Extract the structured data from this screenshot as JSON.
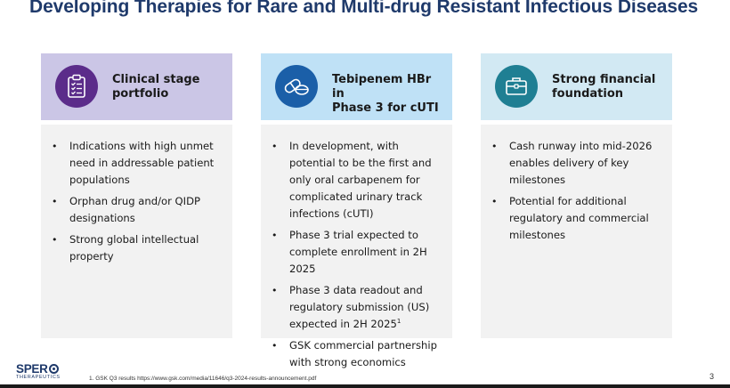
{
  "title": "Developing Therapies for Rare and Multi-drug Resistant Infectious Diseases",
  "columns": [
    {
      "icon": "clipboard-checklist-icon",
      "head_bg": "#cbc6e6",
      "icon_bg": "#5b2c8a",
      "heading_line1": "Clinical stage",
      "heading_line2": "portfolio",
      "bullets": [
        "Indications with high unmet need in addressable patient populations",
        "Orphan drug and/or QIDP designations",
        "Strong global intellectual property"
      ]
    },
    {
      "icon": "pills-icon",
      "head_bg": "#bfe1f6",
      "icon_bg": "#1b5fa8",
      "heading_line1": "Tebipenem HBr in",
      "heading_line2": "Phase 3 for cUTI",
      "bullets": [
        "In development, with potential to be the first and only oral carbapenem for complicated urinary track infections (cUTI)",
        "Phase 3 trial expected to complete enrollment in 2H 2025",
        "Phase 3 data readout and regulatory submission (US) expected in 2H 2025",
        "GSK commercial partnership with strong economics"
      ],
      "bullet3_sup": "1"
    },
    {
      "icon": "briefcase-icon",
      "head_bg": "#d2e9f3",
      "icon_bg": "#1f7f93",
      "heading_line1": "Strong financial",
      "heading_line2": "foundation",
      "bullets": [
        "Cash runway into mid-2026 enables delivery of key milestones",
        "Potential for additional regulatory and commercial milestones"
      ]
    }
  ],
  "footer": {
    "logo_word": "SPER",
    "logo_sub": "THERAPEUTICS",
    "footnote": "1. GSK Q3 results https://www.gsk.com/media/11646/q3-2024-results-announcement.pdf",
    "page_number": "3"
  }
}
